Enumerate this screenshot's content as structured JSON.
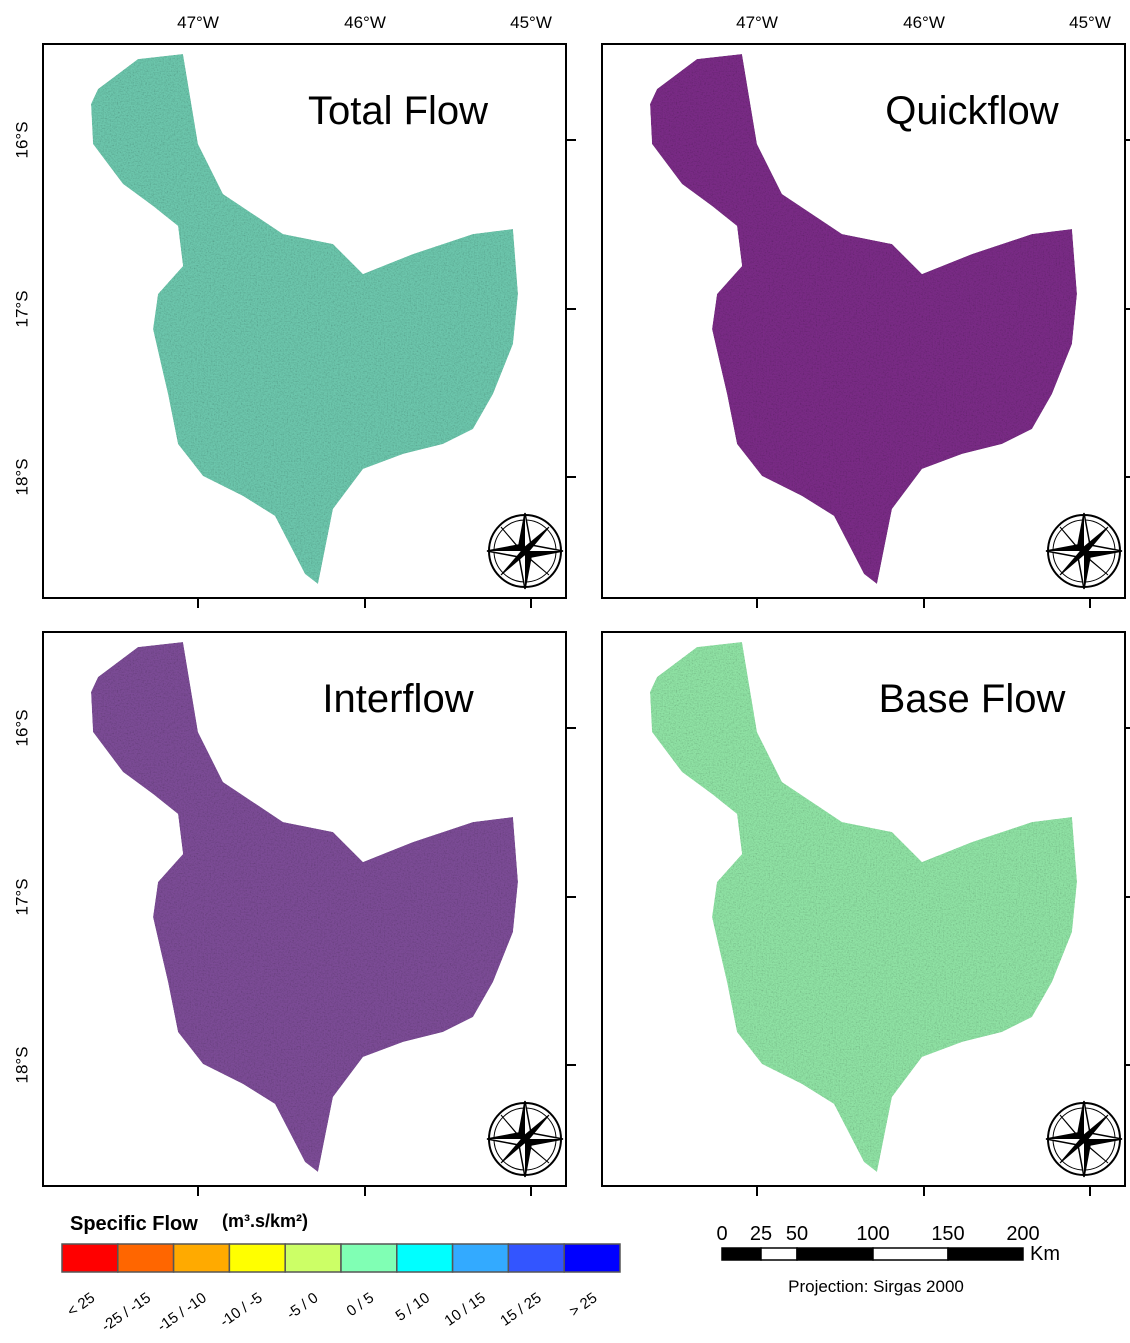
{
  "panels": [
    {
      "title": "Total Flow",
      "color": "#6cc6ac"
    },
    {
      "title": "Quickflow",
      "color": "#7a2c86"
    },
    {
      "title": "Interflow",
      "color": "#7c4c96"
    },
    {
      "title": "Base Flow",
      "color": "#8fe2a4"
    }
  ],
  "lon_labels": [
    "47°W",
    "46°W",
    "45°W"
  ],
  "lat_labels": [
    "16°S",
    "17°S",
    "18°S"
  ],
  "legend": {
    "title": "Specific Flow",
    "unit": "(m³.s/km²)",
    "classes": [
      {
        "label": "< 25",
        "color": "#ff0000"
      },
      {
        "label": "-25 / -15",
        "color": "#ff6600"
      },
      {
        "label": "-15 / -10",
        "color": "#ffaa00"
      },
      {
        "label": "-10 / -5",
        "color": "#ffff00"
      },
      {
        "label": "-5 / 0",
        "color": "#ccff66"
      },
      {
        "label": "0 / 5",
        "color": "#80ffb4"
      },
      {
        "label": "5 / 10",
        "color": "#00ffff"
      },
      {
        "label": "10 / 15",
        "color": "#33aaff"
      },
      {
        "label": "15 / 25",
        "color": "#3355ff"
      },
      {
        "label": "> 25",
        "color": "#0000ff"
      }
    ]
  },
  "scale_bar": {
    "labels": [
      "0",
      "25",
      "50",
      "100",
      "150",
      "200"
    ],
    "unit": "Km"
  },
  "projection": "Projection: Sirgas 2000"
}
